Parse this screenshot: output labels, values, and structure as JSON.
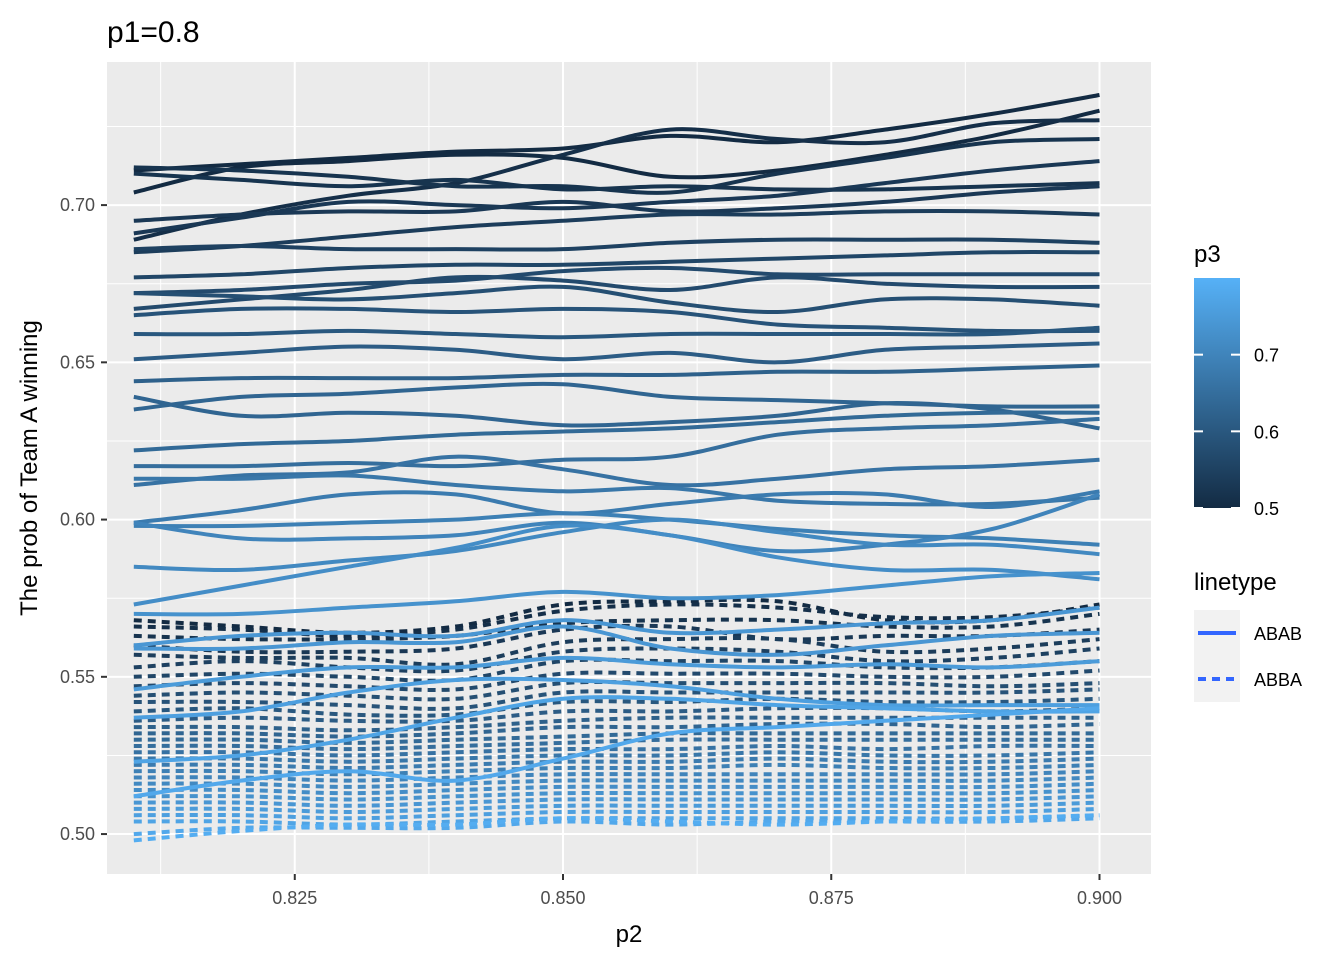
{
  "chart_data": {
    "type": "line",
    "title": "p1=0.8",
    "xlabel": "p2",
    "ylabel": "The prob of Team A winning",
    "xlim": [
      0.8075,
      0.9048
    ],
    "ylim": [
      0.4873,
      0.7455
    ],
    "x_ticks": [
      0.825,
      0.85,
      0.875,
      0.9
    ],
    "x_tick_labels": [
      "0.825",
      "0.850",
      "0.875",
      "0.900"
    ],
    "y_ticks": [
      0.5,
      0.55,
      0.6,
      0.65,
      0.7
    ],
    "y_tick_labels": [
      "0.50",
      "0.55",
      "0.60",
      "0.65",
      "0.70"
    ],
    "x_points": [
      0.81,
      0.82,
      0.83,
      0.84,
      0.85,
      0.86,
      0.87,
      0.88,
      0.89,
      0.9
    ],
    "grid": true,
    "color_legend": {
      "title": "p3",
      "range": [
        0.5,
        0.8
      ],
      "ticks": [
        0.5,
        0.6,
        0.7
      ],
      "tick_labels": [
        "0.5",
        "0.6",
        "0.7"
      ],
      "low_color": "#132B43",
      "high_color": "#56B1F7"
    },
    "linetype_legend": {
      "title": "linetype",
      "entries": [
        {
          "label": "ABAB",
          "dash": "solid"
        },
        {
          "label": "ABBA",
          "dash": "dashed"
        }
      ],
      "color": "#3366FF"
    },
    "series": [
      {
        "linetype": "ABAB",
        "p3": 0.5,
        "values": [
          0.711,
          0.713,
          0.715,
          0.717,
          0.718,
          0.722,
          0.72,
          0.724,
          0.729,
          0.735
        ]
      },
      {
        "linetype": "ABAB",
        "p3": 0.5,
        "values": [
          0.704,
          0.712,
          0.714,
          0.716,
          0.715,
          0.709,
          0.711,
          0.716,
          0.722,
          0.73
        ]
      },
      {
        "linetype": "ABAB",
        "p3": 0.51,
        "values": [
          0.689,
          0.697,
          0.703,
          0.707,
          0.716,
          0.724,
          0.721,
          0.72,
          0.726,
          0.727
        ]
      },
      {
        "linetype": "ABAB",
        "p3": 0.52,
        "values": [
          0.712,
          0.711,
          0.709,
          0.706,
          0.706,
          0.704,
          0.71,
          0.715,
          0.72,
          0.721
        ]
      },
      {
        "linetype": "ABAB",
        "p3": 0.52,
        "values": [
          0.71,
          0.708,
          0.706,
          0.708,
          0.705,
          0.706,
          0.705,
          0.705,
          0.706,
          0.707
        ]
      },
      {
        "linetype": "ABAB",
        "p3": 0.53,
        "values": [
          0.691,
          0.696,
          0.701,
          0.7,
          0.699,
          0.701,
          0.703,
          0.707,
          0.711,
          0.714
        ]
      },
      {
        "linetype": "ABAB",
        "p3": 0.53,
        "values": [
          0.695,
          0.697,
          0.698,
          0.698,
          0.701,
          0.698,
          0.699,
          0.701,
          0.704,
          0.706
        ]
      },
      {
        "linetype": "ABAB",
        "p3": 0.54,
        "values": [
          0.685,
          0.687,
          0.69,
          0.693,
          0.695,
          0.697,
          0.697,
          0.698,
          0.698,
          0.697
        ]
      },
      {
        "linetype": "ABAB",
        "p3": 0.55,
        "values": [
          0.686,
          0.687,
          0.686,
          0.686,
          0.686,
          0.688,
          0.689,
          0.689,
          0.689,
          0.688
        ]
      },
      {
        "linetype": "ABAB",
        "p3": 0.56,
        "values": [
          0.677,
          0.678,
          0.68,
          0.681,
          0.681,
          0.682,
          0.683,
          0.684,
          0.685,
          0.685
        ]
      },
      {
        "linetype": "ABAB",
        "p3": 0.57,
        "values": [
          0.672,
          0.673,
          0.675,
          0.676,
          0.679,
          0.68,
          0.678,
          0.678,
          0.678,
          0.678
        ]
      },
      {
        "linetype": "ABAB",
        "p3": 0.57,
        "values": [
          0.667,
          0.67,
          0.673,
          0.677,
          0.676,
          0.673,
          0.677,
          0.675,
          0.674,
          0.674
        ]
      },
      {
        "linetype": "ABAB",
        "p3": 0.58,
        "values": [
          0.672,
          0.671,
          0.67,
          0.672,
          0.674,
          0.669,
          0.666,
          0.67,
          0.67,
          0.668
        ]
      },
      {
        "linetype": "ABAB",
        "p3": 0.59,
        "values": [
          0.665,
          0.667,
          0.667,
          0.666,
          0.667,
          0.666,
          0.662,
          0.661,
          0.66,
          0.66
        ]
      },
      {
        "linetype": "ABAB",
        "p3": 0.6,
        "values": [
          0.659,
          0.659,
          0.66,
          0.659,
          0.658,
          0.659,
          0.659,
          0.659,
          0.659,
          0.661
        ]
      },
      {
        "linetype": "ABAB",
        "p3": 0.61,
        "values": [
          0.651,
          0.653,
          0.655,
          0.654,
          0.651,
          0.653,
          0.65,
          0.654,
          0.655,
          0.656
        ]
      },
      {
        "linetype": "ABAB",
        "p3": 0.62,
        "values": [
          0.644,
          0.645,
          0.645,
          0.645,
          0.646,
          0.646,
          0.647,
          0.647,
          0.648,
          0.649
        ]
      },
      {
        "linetype": "ABAB",
        "p3": 0.63,
        "values": [
          0.635,
          0.639,
          0.64,
          0.642,
          0.643,
          0.639,
          0.638,
          0.637,
          0.636,
          0.636
        ]
      },
      {
        "linetype": "ABAB",
        "p3": 0.63,
        "values": [
          0.639,
          0.633,
          0.634,
          0.633,
          0.63,
          0.631,
          0.633,
          0.637,
          0.635,
          0.629
        ]
      },
      {
        "linetype": "ABAB",
        "p3": 0.64,
        "values": [
          0.622,
          0.624,
          0.625,
          0.627,
          0.628,
          0.629,
          0.631,
          0.633,
          0.634,
          0.634
        ]
      },
      {
        "linetype": "ABAB",
        "p3": 0.65,
        "values": [
          0.617,
          0.617,
          0.618,
          0.617,
          0.619,
          0.62,
          0.627,
          0.629,
          0.63,
          0.632
        ]
      },
      {
        "linetype": "ABAB",
        "p3": 0.66,
        "values": [
          0.611,
          0.614,
          0.615,
          0.62,
          0.616,
          0.611,
          0.613,
          0.616,
          0.617,
          0.619
        ]
      },
      {
        "linetype": "ABAB",
        "p3": 0.67,
        "values": [
          0.613,
          0.613,
          0.614,
          0.611,
          0.609,
          0.61,
          0.606,
          0.605,
          0.605,
          0.607
        ]
      },
      {
        "linetype": "ABAB",
        "p3": 0.68,
        "values": [
          0.599,
          0.603,
          0.608,
          0.608,
          0.602,
          0.605,
          0.608,
          0.608,
          0.604,
          0.609
        ]
      },
      {
        "linetype": "ABAB",
        "p3": 0.69,
        "values": [
          0.598,
          0.598,
          0.599,
          0.6,
          0.602,
          0.6,
          0.597,
          0.595,
          0.594,
          0.592
        ]
      },
      {
        "linetype": "ABAB",
        "p3": 0.7,
        "values": [
          0.599,
          0.594,
          0.594,
          0.595,
          0.599,
          0.595,
          0.59,
          0.592,
          0.597,
          0.608
        ]
      },
      {
        "linetype": "ABAB",
        "p3": 0.71,
        "values": [
          0.585,
          0.584,
          0.587,
          0.59,
          0.596,
          0.6,
          0.596,
          0.592,
          0.592,
          0.589
        ]
      },
      {
        "linetype": "ABAB",
        "p3": 0.72,
        "values": [
          0.573,
          0.579,
          0.585,
          0.591,
          0.598,
          0.595,
          0.588,
          0.584,
          0.584,
          0.581
        ]
      },
      {
        "linetype": "ABAB",
        "p3": 0.73,
        "values": [
          0.57,
          0.57,
          0.572,
          0.574,
          0.577,
          0.575,
          0.576,
          0.579,
          0.582,
          0.583
        ]
      },
      {
        "linetype": "ABAB",
        "p3": 0.74,
        "values": [
          0.56,
          0.563,
          0.564,
          0.563,
          0.568,
          0.564,
          0.565,
          0.567,
          0.568,
          0.572
        ]
      },
      {
        "linetype": "ABAB",
        "p3": 0.74,
        "values": [
          0.559,
          0.559,
          0.561,
          0.561,
          0.566,
          0.559,
          0.557,
          0.56,
          0.563,
          0.564
        ]
      },
      {
        "linetype": "ABAB",
        "p3": 0.75,
        "values": [
          0.546,
          0.55,
          0.553,
          0.553,
          0.556,
          0.554,
          0.553,
          0.554,
          0.553,
          0.555
        ]
      },
      {
        "linetype": "ABAB",
        "p3": 0.76,
        "values": [
          0.537,
          0.539,
          0.545,
          0.549,
          0.549,
          0.547,
          0.543,
          0.541,
          0.541,
          0.541
        ]
      },
      {
        "linetype": "ABAB",
        "p3": 0.77,
        "values": [
          0.523,
          0.525,
          0.53,
          0.537,
          0.543,
          0.543,
          0.541,
          0.54,
          0.539,
          0.539
        ]
      },
      {
        "linetype": "ABAB",
        "p3": 0.78,
        "values": [
          0.512,
          0.517,
          0.52,
          0.517,
          0.524,
          0.532,
          0.534,
          0.536,
          0.538,
          0.54
        ]
      },
      {
        "linetype": "ABBA",
        "p3": 0.5,
        "values": [
          0.568,
          0.566,
          0.564,
          0.566,
          0.573,
          0.574,
          0.574,
          0.568,
          0.568,
          0.573
        ]
      },
      {
        "linetype": "ABBA",
        "p3": 0.51,
        "values": [
          0.566,
          0.565,
          0.563,
          0.565,
          0.571,
          0.573,
          0.572,
          0.569,
          0.569,
          0.572
        ]
      },
      {
        "linetype": "ABBA",
        "p3": 0.52,
        "values": [
          0.563,
          0.562,
          0.562,
          0.563,
          0.567,
          0.568,
          0.568,
          0.566,
          0.566,
          0.57
        ]
      },
      {
        "linetype": "ABBA",
        "p3": 0.53,
        "values": [
          0.56,
          0.558,
          0.558,
          0.559,
          0.565,
          0.566,
          0.562,
          0.563,
          0.563,
          0.565
        ]
      },
      {
        "linetype": "ABBA",
        "p3": 0.54,
        "values": [
          0.557,
          0.556,
          0.556,
          0.554,
          0.561,
          0.562,
          0.562,
          0.558,
          0.559,
          0.562
        ]
      },
      {
        "linetype": "ABBA",
        "p3": 0.55,
        "values": [
          0.553,
          0.555,
          0.553,
          0.552,
          0.558,
          0.559,
          0.558,
          0.555,
          0.556,
          0.559
        ]
      },
      {
        "linetype": "ABBA",
        "p3": 0.56,
        "values": [
          0.55,
          0.551,
          0.55,
          0.549,
          0.555,
          0.555,
          0.555,
          0.553,
          0.553,
          0.555
        ]
      },
      {
        "linetype": "ABBA",
        "p3": 0.57,
        "values": [
          0.547,
          0.548,
          0.547,
          0.546,
          0.551,
          0.551,
          0.551,
          0.55,
          0.55,
          0.552
        ]
      },
      {
        "linetype": "ABBA",
        "p3": 0.58,
        "values": [
          0.544,
          0.545,
          0.544,
          0.543,
          0.548,
          0.548,
          0.548,
          0.548,
          0.547,
          0.548
        ]
      },
      {
        "linetype": "ABBA",
        "p3": 0.59,
        "values": [
          0.542,
          0.542,
          0.541,
          0.54,
          0.545,
          0.545,
          0.545,
          0.545,
          0.545,
          0.546
        ]
      },
      {
        "linetype": "ABBA",
        "p3": 0.6,
        "values": [
          0.539,
          0.54,
          0.538,
          0.538,
          0.542,
          0.542,
          0.543,
          0.542,
          0.542,
          0.543
        ]
      },
      {
        "linetype": "ABBA",
        "p3": 0.61,
        "values": [
          0.536,
          0.537,
          0.536,
          0.536,
          0.539,
          0.539,
          0.54,
          0.54,
          0.539,
          0.54
        ]
      },
      {
        "linetype": "ABBA",
        "p3": 0.62,
        "values": [
          0.534,
          0.534,
          0.533,
          0.534,
          0.536,
          0.537,
          0.537,
          0.537,
          0.537,
          0.537
        ]
      },
      {
        "linetype": "ABBA",
        "p3": 0.63,
        "values": [
          0.532,
          0.532,
          0.531,
          0.532,
          0.534,
          0.534,
          0.535,
          0.535,
          0.534,
          0.535
        ]
      },
      {
        "linetype": "ABBA",
        "p3": 0.64,
        "values": [
          0.53,
          0.53,
          0.529,
          0.53,
          0.531,
          0.532,
          0.532,
          0.532,
          0.532,
          0.532
        ]
      },
      {
        "linetype": "ABBA",
        "p3": 0.65,
        "values": [
          0.528,
          0.528,
          0.527,
          0.528,
          0.529,
          0.53,
          0.53,
          0.53,
          0.53,
          0.53
        ]
      },
      {
        "linetype": "ABBA",
        "p3": 0.66,
        "values": [
          0.526,
          0.526,
          0.525,
          0.526,
          0.527,
          0.527,
          0.528,
          0.527,
          0.528,
          0.528
        ]
      },
      {
        "linetype": "ABBA",
        "p3": 0.67,
        "values": [
          0.524,
          0.524,
          0.523,
          0.524,
          0.525,
          0.525,
          0.526,
          0.525,
          0.525,
          0.526
        ]
      },
      {
        "linetype": "ABBA",
        "p3": 0.68,
        "values": [
          0.522,
          0.522,
          0.521,
          0.522,
          0.523,
          0.523,
          0.524,
          0.523,
          0.523,
          0.524
        ]
      },
      {
        "linetype": "ABBA",
        "p3": 0.69,
        "values": [
          0.52,
          0.52,
          0.519,
          0.52,
          0.521,
          0.521,
          0.522,
          0.521,
          0.521,
          0.522
        ]
      },
      {
        "linetype": "ABBA",
        "p3": 0.7,
        "values": [
          0.518,
          0.518,
          0.517,
          0.518,
          0.519,
          0.519,
          0.519,
          0.519,
          0.519,
          0.52
        ]
      },
      {
        "linetype": "ABBA",
        "p3": 0.71,
        "values": [
          0.516,
          0.516,
          0.515,
          0.516,
          0.517,
          0.517,
          0.517,
          0.517,
          0.517,
          0.518
        ]
      },
      {
        "linetype": "ABBA",
        "p3": 0.72,
        "values": [
          0.514,
          0.514,
          0.513,
          0.514,
          0.515,
          0.515,
          0.515,
          0.515,
          0.515,
          0.516
        ]
      },
      {
        "linetype": "ABBA",
        "p3": 0.73,
        "values": [
          0.512,
          0.512,
          0.511,
          0.512,
          0.513,
          0.513,
          0.513,
          0.513,
          0.513,
          0.514
        ]
      },
      {
        "linetype": "ABBA",
        "p3": 0.74,
        "values": [
          0.51,
          0.51,
          0.509,
          0.51,
          0.511,
          0.511,
          0.511,
          0.511,
          0.511,
          0.512
        ]
      },
      {
        "linetype": "ABBA",
        "p3": 0.75,
        "values": [
          0.508,
          0.508,
          0.507,
          0.508,
          0.509,
          0.509,
          0.509,
          0.509,
          0.509,
          0.51
        ]
      },
      {
        "linetype": "ABBA",
        "p3": 0.76,
        "values": [
          0.506,
          0.506,
          0.505,
          0.506,
          0.507,
          0.507,
          0.507,
          0.507,
          0.507,
          0.508
        ]
      },
      {
        "linetype": "ABBA",
        "p3": 0.77,
        "values": [
          0.504,
          0.504,
          0.503,
          0.504,
          0.505,
          0.505,
          0.505,
          0.505,
          0.505,
          0.506
        ]
      },
      {
        "linetype": "ABBA",
        "p3": 0.78,
        "values": [
          0.5,
          0.502,
          0.502,
          0.502,
          0.504,
          0.503,
          0.504,
          0.504,
          0.504,
          0.505
        ]
      },
      {
        "linetype": "ABBA",
        "p3": 0.79,
        "values": [
          0.498,
          0.501,
          0.503,
          0.503,
          0.505,
          0.504,
          0.503,
          0.504,
          0.505,
          0.506
        ]
      }
    ]
  }
}
